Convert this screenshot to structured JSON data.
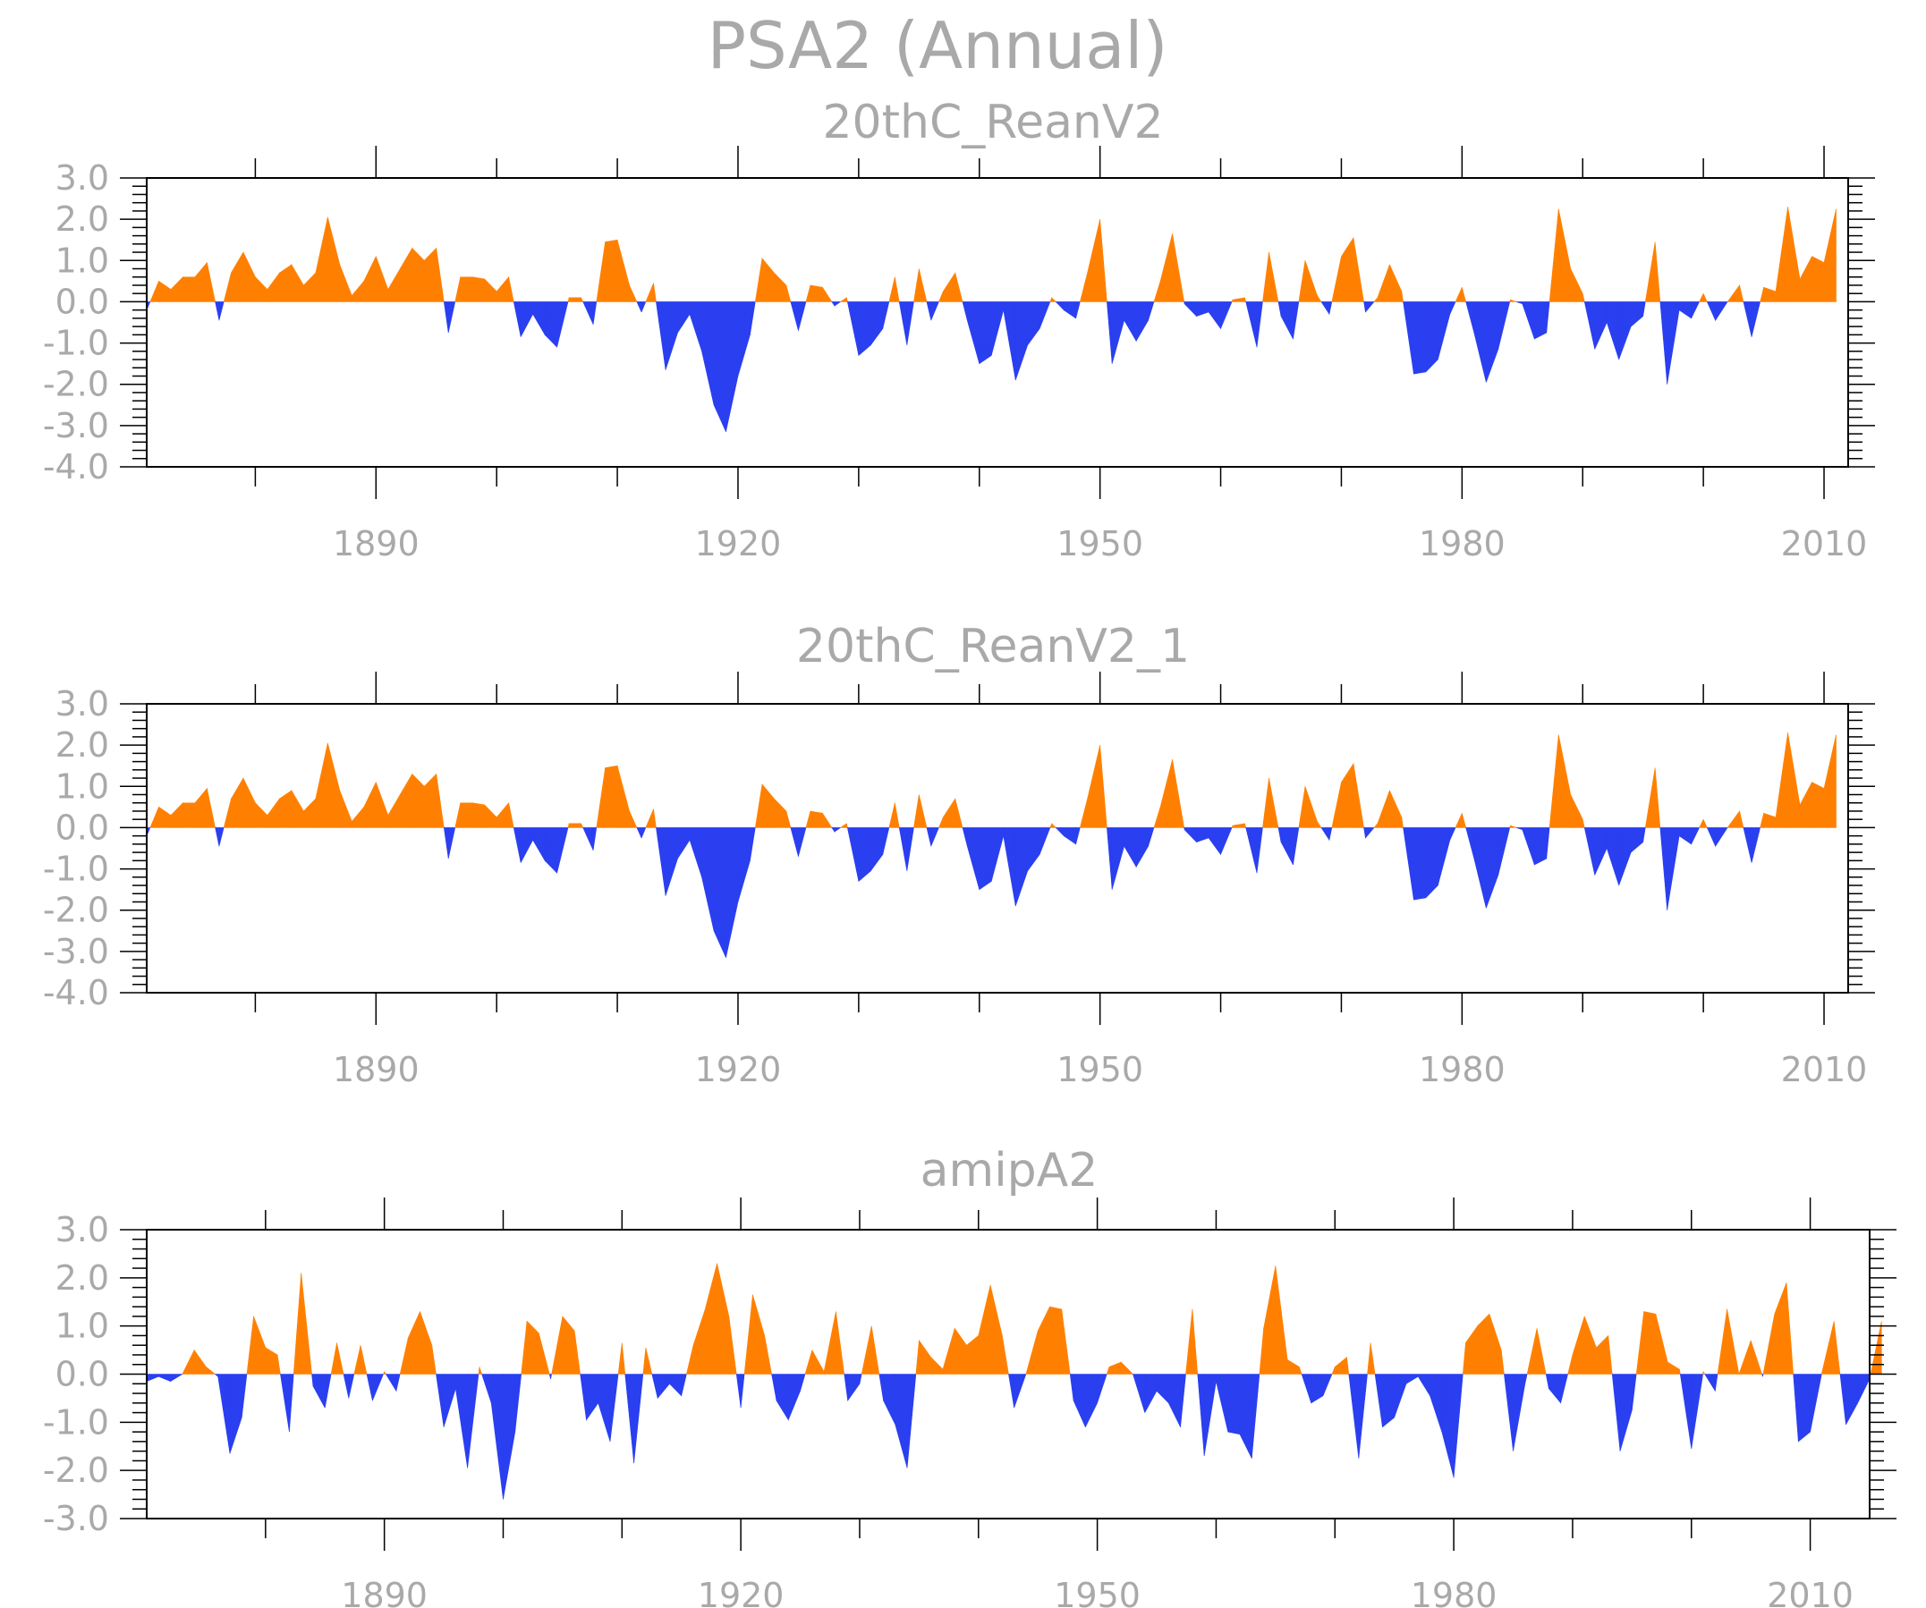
{
  "title": "PSA2 (Annual)",
  "colors": {
    "positive": "#ff8000",
    "negative": "#2a3ff0",
    "axis": "#000000",
    "text": "#a9a9a9"
  },
  "chart_data": [
    {
      "type": "area",
      "title": "20thC_ReanV2",
      "xlim": [
        1871,
        2012
      ],
      "ylim": [
        -4.0,
        3.0
      ],
      "xticks": [
        1890,
        1920,
        1950,
        1980,
        2010
      ],
      "yticks": [
        "3.0",
        "2.0",
        "1.0",
        "0.0",
        "-1.0",
        "-2.0",
        "-3.0",
        "-4.0"
      ],
      "x_start": 1871,
      "values": [
        -0.2,
        0.5,
        0.3,
        0.6,
        0.6,
        0.95,
        -0.45,
        0.7,
        1.2,
        0.6,
        0.3,
        0.7,
        0.9,
        0.4,
        0.7,
        2.05,
        0.9,
        0.15,
        0.5,
        1.1,
        0.3,
        0.8,
        1.3,
        1.0,
        1.3,
        -0.75,
        0.6,
        0.6,
        0.55,
        0.25,
        0.6,
        -0.85,
        -0.3,
        -0.8,
        -1.1,
        0.1,
        0.1,
        -0.55,
        1.45,
        1.5,
        0.4,
        -0.25,
        0.45,
        -1.65,
        -0.75,
        -0.3,
        -1.2,
        -2.5,
        -3.15,
        -1.8,
        -0.8,
        1.05,
        0.7,
        0.4,
        -0.7,
        0.4,
        0.35,
        -0.1,
        0.1,
        -1.3,
        -1.05,
        -0.65,
        0.6,
        -1.05,
        0.8,
        -0.45,
        0.25,
        0.7,
        -0.45,
        -1.5,
        -1.3,
        -0.2,
        -1.9,
        -1.05,
        -0.65,
        0.1,
        -0.2,
        -0.4,
        0.75,
        2.0,
        -1.5,
        -0.45,
        -0.95,
        -0.45,
        0.5,
        1.65,
        -0.05,
        -0.35,
        -0.25,
        -0.65,
        0.05,
        0.1,
        -1.1,
        1.2,
        -0.35,
        -0.9,
        1.0,
        0.15,
        -0.3,
        1.1,
        1.55,
        -0.25,
        0.1,
        0.9,
        0.25,
        -1.75,
        -1.7,
        -1.4,
        -0.3,
        0.35,
        -0.75,
        -1.95,
        -1.15,
        0.05,
        -0.05,
        -0.9,
        -0.75,
        2.25,
        0.8,
        0.2,
        -1.15,
        -0.5,
        -1.4,
        -0.6,
        -0.35,
        1.45,
        -2.0,
        -0.2,
        -0.4,
        0.2,
        -0.45,
        0.0,
        0.4,
        -0.85,
        0.35,
        0.25,
        2.3,
        0.55,
        1.1,
        0.95,
        2.25
      ]
    },
    {
      "type": "area",
      "title": "20thC_ReanV2_1",
      "xlim": [
        1871,
        2012
      ],
      "ylim": [
        -4.0,
        3.0
      ],
      "xticks": [
        1890,
        1920,
        1950,
        1980,
        2010
      ],
      "yticks": [
        "3.0",
        "2.0",
        "1.0",
        "0.0",
        "-1.0",
        "-2.0",
        "-3.0",
        "-4.0"
      ],
      "x_start": 1871,
      "values": [
        -0.2,
        0.5,
        0.3,
        0.6,
        0.6,
        0.95,
        -0.45,
        0.7,
        1.2,
        0.6,
        0.3,
        0.7,
        0.9,
        0.4,
        0.7,
        2.05,
        0.9,
        0.15,
        0.5,
        1.1,
        0.3,
        0.8,
        1.3,
        1.0,
        1.3,
        -0.75,
        0.6,
        0.6,
        0.55,
        0.25,
        0.6,
        -0.85,
        -0.3,
        -0.8,
        -1.1,
        0.1,
        0.1,
        -0.55,
        1.45,
        1.5,
        0.4,
        -0.25,
        0.45,
        -1.65,
        -0.75,
        -0.3,
        -1.2,
        -2.5,
        -3.15,
        -1.8,
        -0.8,
        1.05,
        0.7,
        0.4,
        -0.7,
        0.4,
        0.35,
        -0.1,
        0.1,
        -1.3,
        -1.05,
        -0.65,
        0.6,
        -1.05,
        0.8,
        -0.45,
        0.25,
        0.7,
        -0.45,
        -1.5,
        -1.3,
        -0.2,
        -1.9,
        -1.05,
        -0.65,
        0.1,
        -0.2,
        -0.4,
        0.75,
        2.0,
        -1.5,
        -0.45,
        -0.95,
        -0.45,
        0.5,
        1.65,
        -0.05,
        -0.35,
        -0.25,
        -0.65,
        0.05,
        0.1,
        -1.1,
        1.2,
        -0.35,
        -0.9,
        1.0,
        0.15,
        -0.3,
        1.1,
        1.55,
        -0.25,
        0.1,
        0.9,
        0.25,
        -1.75,
        -1.7,
        -1.4,
        -0.3,
        0.35,
        -0.75,
        -1.95,
        -1.15,
        0.05,
        -0.05,
        -0.9,
        -0.75,
        2.25,
        0.8,
        0.2,
        -1.15,
        -0.5,
        -1.4,
        -0.6,
        -0.35,
        1.45,
        -2.0,
        -0.2,
        -0.4,
        0.2,
        -0.45,
        0.0,
        0.4,
        -0.85,
        0.35,
        0.25,
        2.3,
        0.55,
        1.1,
        0.95,
        2.25
      ]
    },
    {
      "type": "area",
      "title": "amipA2",
      "xlim": [
        1870,
        2015
      ],
      "ylim": [
        -3.0,
        3.0
      ],
      "xticks": [
        1890,
        1920,
        1950,
        1980,
        2010
      ],
      "yticks": [
        "3.0",
        "2.0",
        "1.0",
        "0.0",
        "-1.0",
        "-2.0",
        "-3.0"
      ],
      "x_start": 1870,
      "values": [
        -0.15,
        -0.05,
        -0.15,
        0.0,
        0.5,
        0.15,
        -0.05,
        -1.65,
        -0.9,
        1.2,
        0.55,
        0.4,
        -1.2,
        2.1,
        -0.25,
        -0.7,
        0.65,
        -0.5,
        0.6,
        -0.55,
        0.05,
        -0.35,
        0.75,
        1.3,
        0.6,
        -1.1,
        -0.3,
        -1.95,
        0.15,
        -0.6,
        -2.6,
        -1.2,
        1.1,
        0.85,
        -0.1,
        1.2,
        0.9,
        -0.95,
        -0.6,
        -1.4,
        0.65,
        -1.85,
        0.55,
        -0.5,
        -0.2,
        -0.45,
        0.6,
        1.35,
        2.3,
        1.2,
        -0.7,
        1.65,
        0.8,
        -0.55,
        -0.95,
        -0.35,
        0.5,
        0.05,
        1.3,
        -0.55,
        -0.2,
        1.0,
        -0.55,
        -1.05,
        -1.95,
        0.7,
        0.35,
        0.1,
        0.95,
        0.6,
        0.8,
        1.85,
        0.8,
        -0.7,
        0.0,
        0.9,
        1.4,
        1.35,
        -0.55,
        -1.1,
        -0.6,
        0.15,
        0.25,
        0.0,
        -0.8,
        -0.35,
        -0.6,
        -1.1,
        1.35,
        -1.7,
        -0.15,
        -1.2,
        -1.25,
        -1.75,
        0.95,
        2.25,
        0.3,
        0.15,
        -0.6,
        -0.45,
        0.15,
        0.35,
        -1.75,
        0.65,
        -1.1,
        -0.9,
        -0.2,
        -0.05,
        -0.45,
        -1.2,
        -2.15,
        0.65,
        1.0,
        1.25,
        0.5,
        -1.6,
        -0.2,
        0.95,
        -0.3,
        -0.6,
        0.4,
        1.2,
        0.55,
        0.8,
        -1.6,
        -0.75,
        1.3,
        1.25,
        0.25,
        0.1,
        -1.55,
        0.05,
        -0.35,
        1.35,
        0.0,
        0.7,
        -0.05,
        1.25,
        1.9,
        -1.4,
        -1.2,
        0.05,
        1.1,
        -1.05,
        -0.6,
        -0.1,
        1.1
      ]
    }
  ]
}
